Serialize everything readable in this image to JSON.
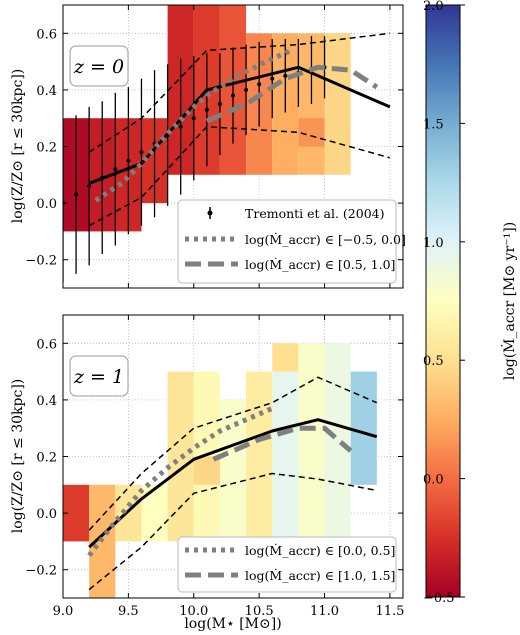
{
  "figure": {
    "colorbar": {
      "label": "log(Ṁ_accr [M⊙ yr⁻¹])",
      "range": [
        -0.5,
        2.0
      ],
      "ticks": [
        -0.5,
        0.0,
        0.5,
        1.0,
        1.5,
        2.0
      ],
      "tick_labels": [
        "−0.5",
        "0.0",
        "0.5",
        "1.0",
        "1.5",
        "2.0"
      ],
      "colormap": [
        "#a50026",
        "#d73027",
        "#f46d43",
        "#fdae61",
        "#fee090",
        "#ffffbf",
        "#e0f3f8",
        "#abd9e9",
        "#74add1",
        "#4575b4",
        "#313695"
      ]
    }
  },
  "chart_data": [
    {
      "type": "heatmap",
      "panel_label": "z = 0",
      "xlabel": "",
      "ylabel": "log(Z/Z⊙ [r ≤ 30kpc])",
      "xlim": [
        9.0,
        11.6
      ],
      "ylim": [
        -0.3,
        0.7
      ],
      "xticks": [
        9.0,
        9.5,
        10.0,
        10.5,
        11.0,
        11.5
      ],
      "yticks": [
        -0.2,
        0.0,
        0.2,
        0.4,
        0.6
      ],
      "ytick_labels": [
        "−0.2",
        "0.0",
        "0.2",
        "0.4",
        "0.6"
      ],
      "grid": true,
      "cells": [
        {
          "x": [
            9.0,
            9.2
          ],
          "y": [
            -0.1,
            0.3
          ],
          "value": -0.45
        },
        {
          "x": [
            9.2,
            9.4
          ],
          "y": [
            -0.1,
            0.3
          ],
          "value": -0.35
        },
        {
          "x": [
            9.4,
            9.6
          ],
          "y": [
            -0.1,
            0.3
          ],
          "value": -0.3
        },
        {
          "x": [
            9.6,
            9.8
          ],
          "y": [
            0.0,
            0.3
          ],
          "value": -0.25
        },
        {
          "x": [
            9.8,
            10.0
          ],
          "y": [
            0.1,
            0.7
          ],
          "value": -0.3
        },
        {
          "x": [
            10.0,
            10.2
          ],
          "y": [
            0.1,
            0.7
          ],
          "value": -0.2
        },
        {
          "x": [
            10.2,
            10.4
          ],
          "y": [
            0.1,
            0.7
          ],
          "value": -0.1
        },
        {
          "x": [
            10.4,
            10.6
          ],
          "y": [
            0.1,
            0.6
          ],
          "value": 0.1
        },
        {
          "x": [
            10.6,
            10.8
          ],
          "y": [
            0.1,
            0.6
          ],
          "value": 0.25
        },
        {
          "x": [
            10.8,
            11.0
          ],
          "y": [
            0.1,
            0.6
          ],
          "value": 0.3
        },
        {
          "x": [
            11.0,
            11.2
          ],
          "y": [
            0.1,
            0.6
          ],
          "value": 0.45
        },
        {
          "x": [
            10.8,
            11.0
          ],
          "y": [
            0.2,
            0.3
          ],
          "value": 0.15
        }
      ],
      "series": [
        {
          "name": "Tremonti et al. (2004)",
          "style": "errorbar",
          "x": [
            9.0,
            9.1,
            9.2,
            9.3,
            9.4,
            9.5,
            9.6,
            9.7,
            9.8,
            9.9,
            10.0,
            10.1,
            10.2,
            10.3,
            10.4,
            10.5,
            10.6,
            10.7,
            10.8,
            10.9,
            11.0
          ],
          "y": [
            0.0,
            0.03,
            0.06,
            0.09,
            0.12,
            0.15,
            0.18,
            0.21,
            0.24,
            0.27,
            0.3,
            0.33,
            0.35,
            0.38,
            0.4,
            0.42,
            0.44,
            0.45,
            0.46,
            0.47,
            0.48
          ],
          "yerr": [
            0.28,
            0.28,
            0.28,
            0.27,
            0.27,
            0.26,
            0.26,
            0.26,
            0.25,
            0.24,
            0.22,
            0.2,
            0.18,
            0.17,
            0.16,
            0.15,
            0.14,
            0.13,
            0.12,
            0.12,
            0.11
          ]
        },
        {
          "name": "median",
          "style": "solid",
          "x": [
            9.2,
            9.6,
            10.1,
            10.8,
            11.5
          ],
          "y": [
            0.07,
            0.14,
            0.4,
            0.48,
            0.34
          ]
        },
        {
          "name": "percentile-16",
          "style": "dashed",
          "x": [
            9.2,
            9.6,
            10.1,
            10.8,
            11.5
          ],
          "y": [
            -0.08,
            0.02,
            0.27,
            0.25,
            0.16
          ]
        },
        {
          "name": "percentile-84",
          "style": "dashed",
          "x": [
            9.2,
            9.6,
            10.1,
            10.8,
            11.5
          ],
          "y": [
            0.18,
            0.3,
            0.54,
            0.56,
            0.6
          ]
        },
        {
          "name": "log(Ṁ_accr) ∈ [−0.5, 0.0]",
          "style": "dotted",
          "x": [
            9.25,
            9.45,
            9.6,
            9.75,
            9.85,
            10.0,
            10.1,
            10.3,
            10.55,
            10.75
          ],
          "y": [
            0.01,
            0.07,
            0.14,
            0.22,
            0.27,
            0.34,
            0.38,
            0.44,
            0.5,
            0.54
          ]
        },
        {
          "name": "log(Ṁ_accr) ∈ [0.5, 1.0]",
          "style": "longdash",
          "x": [
            10.1,
            10.4,
            10.7,
            10.95,
            11.2,
            11.4
          ],
          "y": [
            0.29,
            0.35,
            0.44,
            0.48,
            0.47,
            0.41
          ]
        }
      ],
      "legend": {
        "placement": "lower-right",
        "entries": [
          "Tremonti et al. (2004)",
          "log(Ṁ_accr) ∈ [−0.5, 0.0]",
          "log(Ṁ_accr) ∈ [0.5, 1.0]"
        ]
      }
    },
    {
      "type": "heatmap",
      "panel_label": "z = 1",
      "xlabel": "log(M⋆ [M⊙])",
      "ylabel": "log(Z/Z⊙ [r ≤ 30kpc])",
      "xlim": [
        9.0,
        11.6
      ],
      "ylim": [
        -0.3,
        0.7
      ],
      "xticks": [
        9.0,
        9.5,
        10.0,
        10.5,
        11.0,
        11.5
      ],
      "xtick_labels": [
        "9.0",
        "9.5",
        "10.0",
        "10.5",
        "11.0",
        "11.5"
      ],
      "yticks": [
        -0.2,
        0.0,
        0.2,
        0.4,
        0.6
      ],
      "ytick_labels": [
        "−0.2",
        "0.0",
        "0.2",
        "0.4",
        "0.6"
      ],
      "grid": true,
      "cells": [
        {
          "x": [
            9.0,
            9.2
          ],
          "y": [
            -0.1,
            0.1
          ],
          "value": -0.2
        },
        {
          "x": [
            9.2,
            9.4
          ],
          "y": [
            -0.3,
            0.1
          ],
          "value": 0.3
        },
        {
          "x": [
            9.4,
            9.6
          ],
          "y": [
            -0.1,
            0.1
          ],
          "value": 0.55
        },
        {
          "x": [
            9.6,
            9.8
          ],
          "y": [
            -0.1,
            0.1
          ],
          "value": 0.75
        },
        {
          "x": [
            9.8,
            10.0
          ],
          "y": [
            -0.1,
            0.5
          ],
          "value": 0.55
        },
        {
          "x": [
            10.0,
            10.2
          ],
          "y": [
            -0.1,
            0.5
          ],
          "value": 0.7
        },
        {
          "x": [
            10.2,
            10.4
          ],
          "y": [
            -0.1,
            0.4
          ],
          "value": 0.8
        },
        {
          "x": [
            10.4,
            10.6
          ],
          "y": [
            -0.1,
            0.5
          ],
          "value": 0.6
        },
        {
          "x": [
            10.6,
            10.8
          ],
          "y": [
            -0.1,
            0.5
          ],
          "value": 0.95
        },
        {
          "x": [
            10.8,
            11.0
          ],
          "y": [
            -0.1,
            0.6
          ],
          "value": 0.8
        },
        {
          "x": [
            11.0,
            11.2
          ],
          "y": [
            -0.1,
            0.6
          ],
          "value": 0.9
        },
        {
          "x": [
            11.2,
            11.4
          ],
          "y": [
            0.1,
            0.5
          ],
          "value": 1.3
        },
        {
          "x": [
            10.6,
            10.8
          ],
          "y": [
            0.5,
            0.6
          ],
          "value": 0.5
        },
        {
          "x": [
            10.0,
            10.2
          ],
          "y": [
            0.1,
            0.2
          ],
          "value": 0.45
        }
      ],
      "series": [
        {
          "name": "median",
          "style": "solid",
          "x": [
            9.2,
            9.6,
            10.0,
            10.6,
            10.95,
            11.4
          ],
          "y": [
            -0.12,
            0.05,
            0.19,
            0.29,
            0.33,
            0.27
          ]
        },
        {
          "name": "percentile-16",
          "style": "dashed",
          "x": [
            9.2,
            9.6,
            10.0,
            10.6,
            10.95,
            11.4
          ],
          "y": [
            -0.27,
            -0.12,
            0.07,
            0.14,
            0.12,
            0.08
          ]
        },
        {
          "name": "percentile-84",
          "style": "dashed",
          "x": [
            9.2,
            9.6,
            10.0,
            10.6,
            10.95,
            11.4
          ],
          "y": [
            -0.06,
            0.14,
            0.3,
            0.39,
            0.48,
            0.39
          ]
        },
        {
          "name": "log(Ṁ_accr) ∈ [0.0, 0.5]",
          "style": "dotted",
          "x": [
            9.2,
            9.4,
            9.6,
            9.8,
            10.0,
            10.2,
            10.4,
            10.6
          ],
          "y": [
            -0.15,
            -0.03,
            0.08,
            0.16,
            0.23,
            0.29,
            0.33,
            0.37
          ]
        },
        {
          "name": "log(Ṁ_accr) ∈ [1.0, 1.5]",
          "style": "longdash",
          "x": [
            10.15,
            10.5,
            10.8,
            11.0,
            11.2
          ],
          "y": [
            0.19,
            0.26,
            0.3,
            0.3,
            0.22
          ]
        }
      ],
      "legend": {
        "placement": "lower-right",
        "entries": [
          "log(Ṁ_accr) ∈ [0.0, 0.5]",
          "log(Ṁ_accr) ∈ [1.0, 1.5]"
        ]
      }
    }
  ]
}
